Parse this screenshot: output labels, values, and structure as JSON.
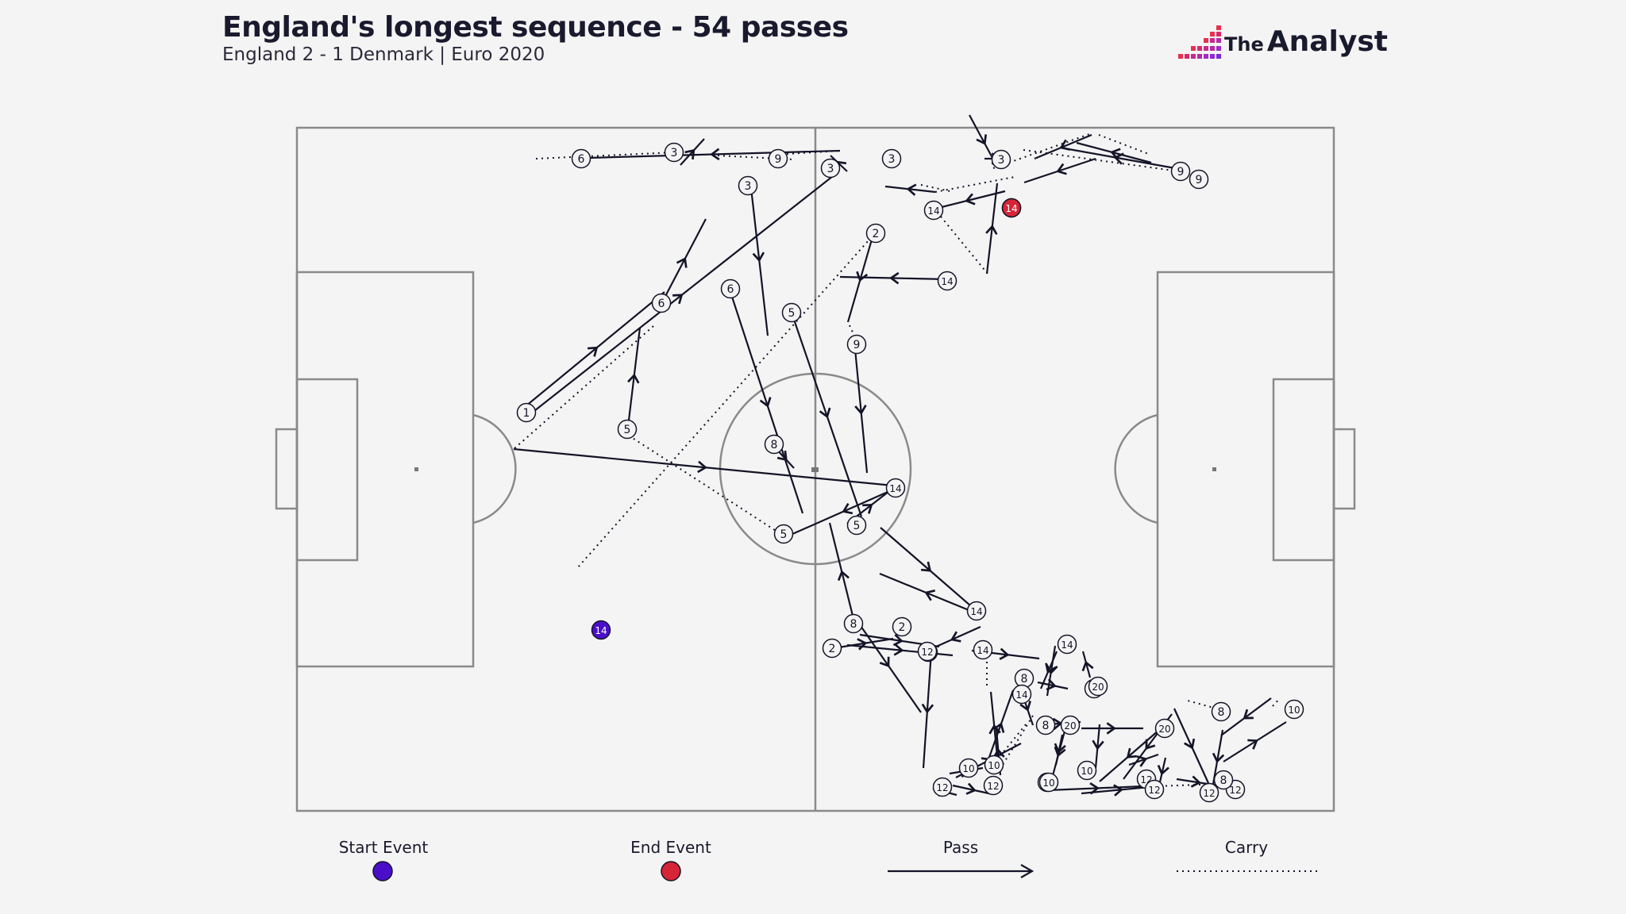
{
  "header": {
    "title": "England's longest sequence - 54 passes",
    "subtitle": "England 2 - 1 Denmark | Euro 2020",
    "brand_prefix": "The",
    "brand_name": "Analyst"
  },
  "legend": {
    "start_label": "Start Event",
    "end_label": "End Event",
    "pass_label": "Pass",
    "carry_label": "Carry"
  },
  "colors": {
    "start": "#4b0fc9",
    "end": "#d62536",
    "line": "#141428",
    "pitch": "#8a8a8a",
    "background": "#f4f4f4"
  },
  "sequence": {
    "start_player": "14",
    "end_player": "14",
    "players": [
      "6",
      "3",
      "9",
      "3",
      "3",
      "3",
      "3",
      "9",
      "9",
      "14",
      "14",
      "2",
      "14",
      "6",
      "6",
      "5",
      "9",
      "1",
      "5",
      "8",
      "5",
      "14",
      "5",
      "8",
      "2",
      "2",
      "14",
      "8",
      "12",
      "14",
      "14",
      "8",
      "8",
      "20",
      "14",
      "8",
      "20",
      "20",
      "8",
      "10",
      "10",
      "10",
      "12",
      "10",
      "10",
      "12",
      "10",
      "12",
      "12",
      "12",
      "8",
      "12"
    ]
  }
}
